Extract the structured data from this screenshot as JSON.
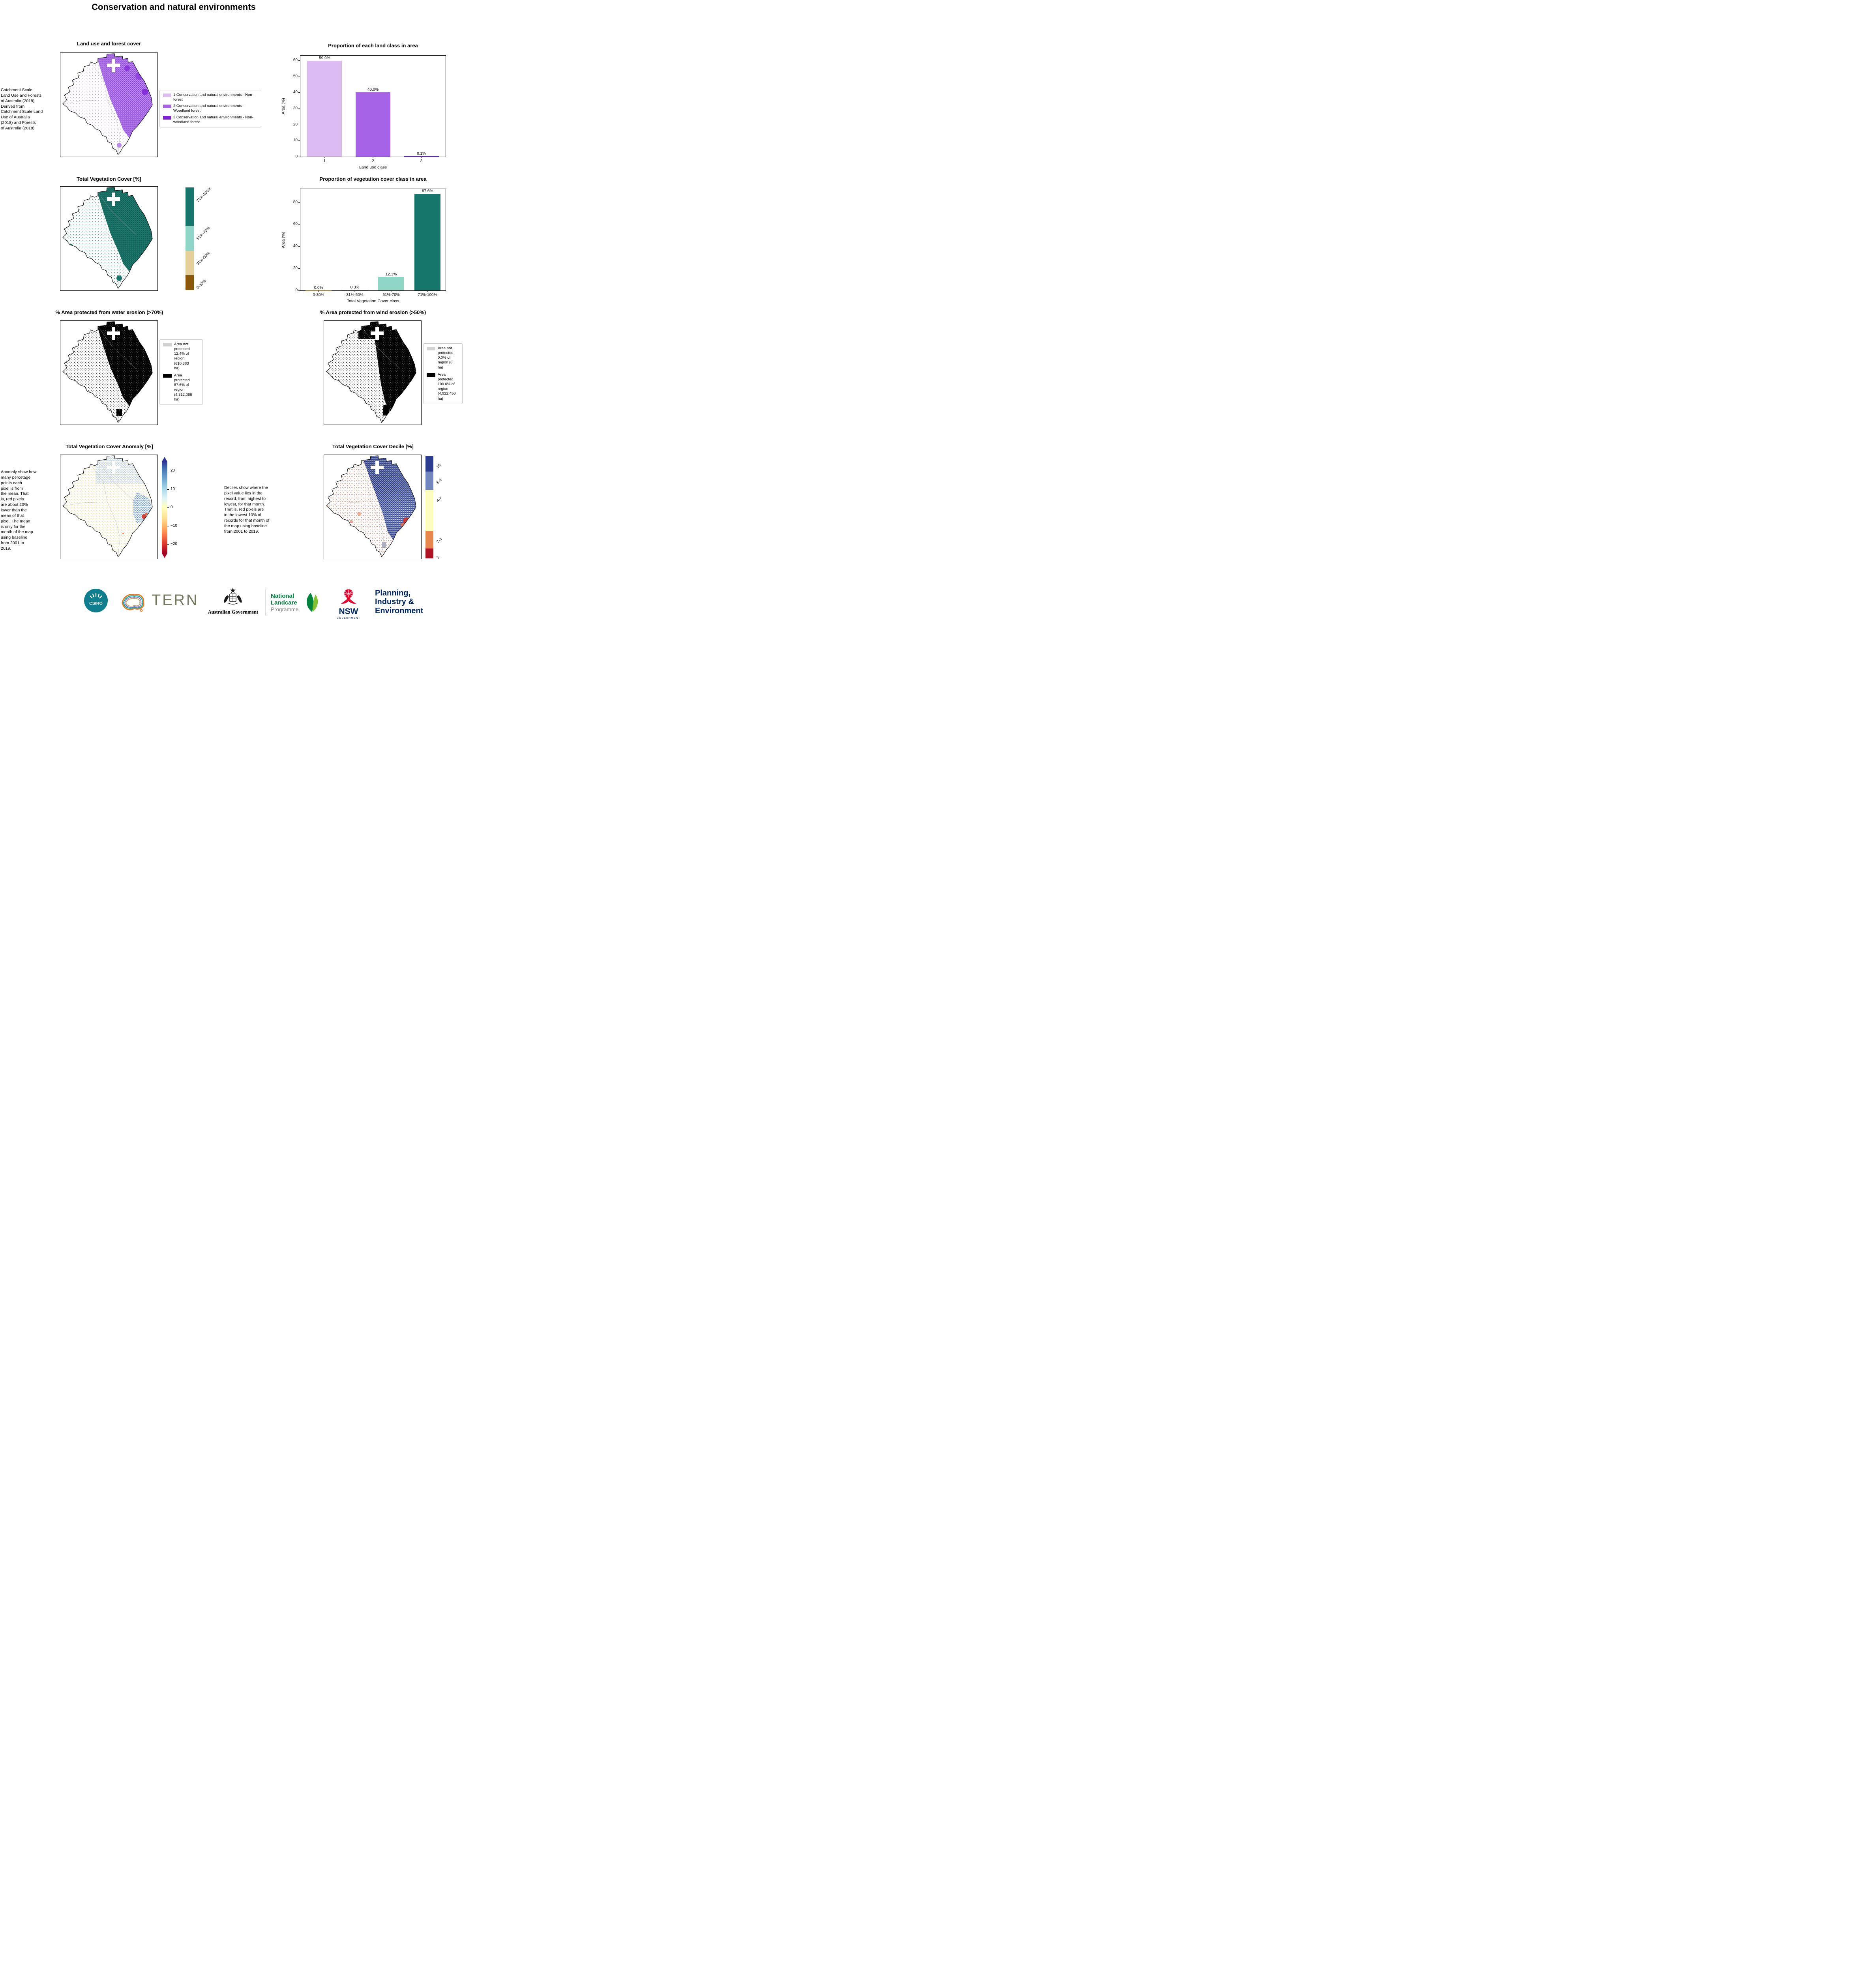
{
  "title": "Conservation and natural environments",
  "maps": {
    "land_use": {
      "title": "Land use and forest cover",
      "note": "Catchment Scale\nLand Use and Forests\nof Australia (2018)\nDerived from\nCatchment Scale Land\nUse of Australia\n(2018) and Forests\nof Australia (2018)",
      "legend": [
        {
          "label": "1 Conservation and natural environments - Non-forest",
          "color": "#dcbaf2"
        },
        {
          "label": "2 Conservation and natural environments - Woodland forest",
          "color": "#a763e8"
        },
        {
          "label": "3 Conservation and natural environments - Non-woodland forest",
          "color": "#7d22d4"
        }
      ]
    },
    "veg_cover": {
      "title": "Total Vegetation Cover [%]",
      "colorbar": {
        "labels": [
          "71%-100%",
          "51%-70%",
          "31%-50%",
          "0-30%"
        ],
        "colors": [
          "#17766b",
          "#8fd6c6",
          "#e5d09c",
          "#8a570c"
        ]
      }
    },
    "water_erosion": {
      "title": "% Area protected from water erosion (>70%)",
      "legend": [
        {
          "label": "Area not\nprotected\n12.4% of\nregion\n(610,383\nha)",
          "color": "#d3d3d3"
        },
        {
          "label": "Area\nprotected\n87.6% of\nregion\n(4,312,066\nha)",
          "color": "#000000"
        }
      ]
    },
    "wind_erosion": {
      "title": "% Area protected from wind erosion (>50%)",
      "legend": [
        {
          "label": "Area not\nprotected\n0.0% of\nregion (0\nha)",
          "color": "#d3d3d3"
        },
        {
          "label": "Area\nprotected\n100.0% of\nregion\n(4,922,450\nha)",
          "color": "#000000"
        }
      ]
    },
    "anomaly": {
      "title": "Total Vegetation Cover Anomaly [%]",
      "note": "Anomaly show how\nmany percetage\npoints each\npixel is from\nthe mean. That\nis, red pixels\nare about 20%\nlower than the\nmean of that\npixel. The mean\nis only for the\nmonth of the map\nusing baseline\nfrom 2001 to\n2019.",
      "colorbar": {
        "ticks": [
          "20",
          "10",
          "0",
          "−10",
          "−20"
        ]
      }
    },
    "decile": {
      "title": "Total Vegetation Cover Decile [%]",
      "note": "Deciles show where the\npixel value lies in the\nrecord, from highest to\nlowest, for that month.\nThat is, red pixels are\nin the lowest 10% of\nrecords for that month of\nthe map using baseline\nfrom 2001 to 2019.",
      "colorbar": {
        "labels": [
          "10",
          "8-9",
          "4-7",
          "2-3",
          "1"
        ],
        "colors": [
          "#2c3d8f",
          "#7286c0",
          "#fdfdbe",
          "#e8864f",
          "#b01226"
        ]
      }
    }
  },
  "chart_data": [
    {
      "type": "bar",
      "title": "Proportion of each land class in area",
      "categories": [
        "1",
        "2",
        "3"
      ],
      "values": [
        59.9,
        40.0,
        0.1
      ],
      "bar_labels": [
        "59.9%",
        "40.0%",
        "0.1%"
      ],
      "colors": [
        "#dcbaf2",
        "#a763e8",
        "#7d22d4"
      ],
      "xlabel": "Land use class",
      "ylabel": "Area (%)",
      "ylim": [
        0,
        63
      ],
      "yticks": [
        0,
        10,
        20,
        30,
        40,
        50,
        60
      ],
      "legend_position": "none",
      "grid": false
    },
    {
      "type": "bar",
      "title": "Proportion of vegetation cover class in area",
      "categories": [
        "0-30%",
        "31%-50%",
        "51%-70%",
        "71%-100%"
      ],
      "values": [
        0.0,
        0.3,
        12.1,
        87.6
      ],
      "bar_labels": [
        "0.0%",
        "0.3%",
        "12.1%",
        "87.6%"
      ],
      "colors": [
        "#8a570c",
        "#e5d09c",
        "#8fd6c6",
        "#17766b"
      ],
      "xlabel": "Total Vegetation Cover class",
      "ylabel": "Area (%)",
      "ylim": [
        0,
        92
      ],
      "yticks": [
        0,
        20,
        40,
        60,
        80
      ],
      "legend_position": "none",
      "grid": false
    }
  ],
  "logos": {
    "csiro": "CSIRO",
    "tern": "TERN",
    "aus_gov": "Australian Government",
    "landcare_1": "National",
    "landcare_2": "Landcare",
    "landcare_3": "Programme",
    "nsw": "NSW",
    "nsw_sub": "GOVERNMENT",
    "pie_1": "Planning,",
    "pie_2": "Industry &",
    "pie_3": "Environment"
  },
  "colors": {
    "purple_light": "#dcbaf2",
    "purple_mid": "#a763e8",
    "purple_dark": "#7d22d4",
    "teal_dark": "#17766b",
    "teal_light": "#8fd6c6",
    "tan": "#e5d09c",
    "brown": "#8a570c",
    "legend_gray": "#d3d3d3",
    "csiro_teal": "#0f7e8e",
    "nsw_red": "#e4002b",
    "gov_navy": "#002664",
    "landcare_green": "#00843d",
    "landcare_light_green": "#78be20",
    "tern_olive": "#75775e"
  }
}
